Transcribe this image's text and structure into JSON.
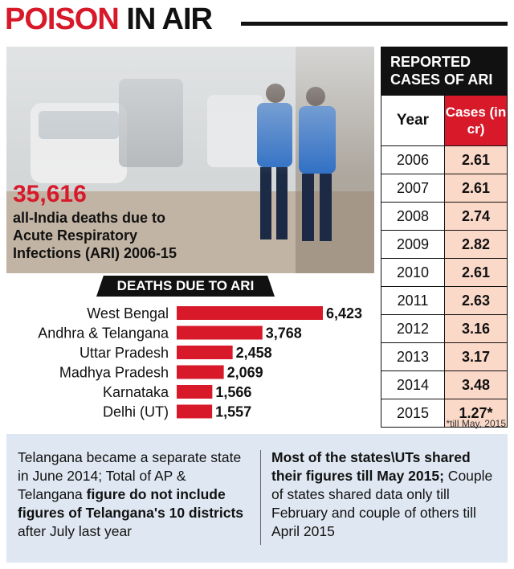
{
  "title": {
    "part1": "POISON",
    "part2": "IN AIR"
  },
  "headline_stat": {
    "number": "35,616",
    "description": "all-India deaths due to Acute Respiratory Infections (ARI) 2006-15"
  },
  "photo": {
    "subject": "street-haze-pedestrians-photo"
  },
  "colors": {
    "accent": "#d7192a",
    "bar": "#d7192a",
    "table_highlight": "#fbd9c9",
    "note_bg": "#dfe8f2"
  },
  "chart_data": {
    "type": "bar",
    "orientation": "horizontal",
    "title": "DEATHS DUE TO ARI",
    "categories": [
      "West Bengal",
      "Andhra & Telangana",
      "Uttar Pradesh",
      "Madhya Pradesh",
      "Karnataka",
      "Delhi (UT)"
    ],
    "values": [
      6423,
      3768,
      2458,
      2069,
      1566,
      1557
    ],
    "value_labels": [
      "6,423",
      "3,768",
      "2,458",
      "2,069",
      "1,566",
      "1,557"
    ],
    "xlim": [
      0,
      6423
    ]
  },
  "table": {
    "title": "REPORTED CASES OF ARI",
    "col_year": "Year",
    "col_cases": "Cases (in cr)",
    "rows": [
      {
        "year": "2006",
        "cases": "2.61"
      },
      {
        "year": "2007",
        "cases": "2.61"
      },
      {
        "year": "2008",
        "cases": "2.74"
      },
      {
        "year": "2009",
        "cases": "2.82"
      },
      {
        "year": "2010",
        "cases": "2.61"
      },
      {
        "year": "2011",
        "cases": "2.63"
      },
      {
        "year": "2012",
        "cases": "3.16"
      },
      {
        "year": "2013",
        "cases": "3.17"
      },
      {
        "year": "2014",
        "cases": "3.48"
      },
      {
        "year": "2015",
        "cases": "1.27*"
      }
    ],
    "footnote": "*till May, 2015"
  },
  "notes": {
    "left": {
      "text1": "Telangana became a separate state in June 2014; Total of AP & Telangana ",
      "bold1": "figure do not include figures of Telangana's 10 districts",
      "text2": " after July last year"
    },
    "right": {
      "bold1": "Most of the states\\UTs shared their figures till May 2015;",
      "text1": " Couple of states shared data only till February and couple of others till April 2015"
    }
  }
}
